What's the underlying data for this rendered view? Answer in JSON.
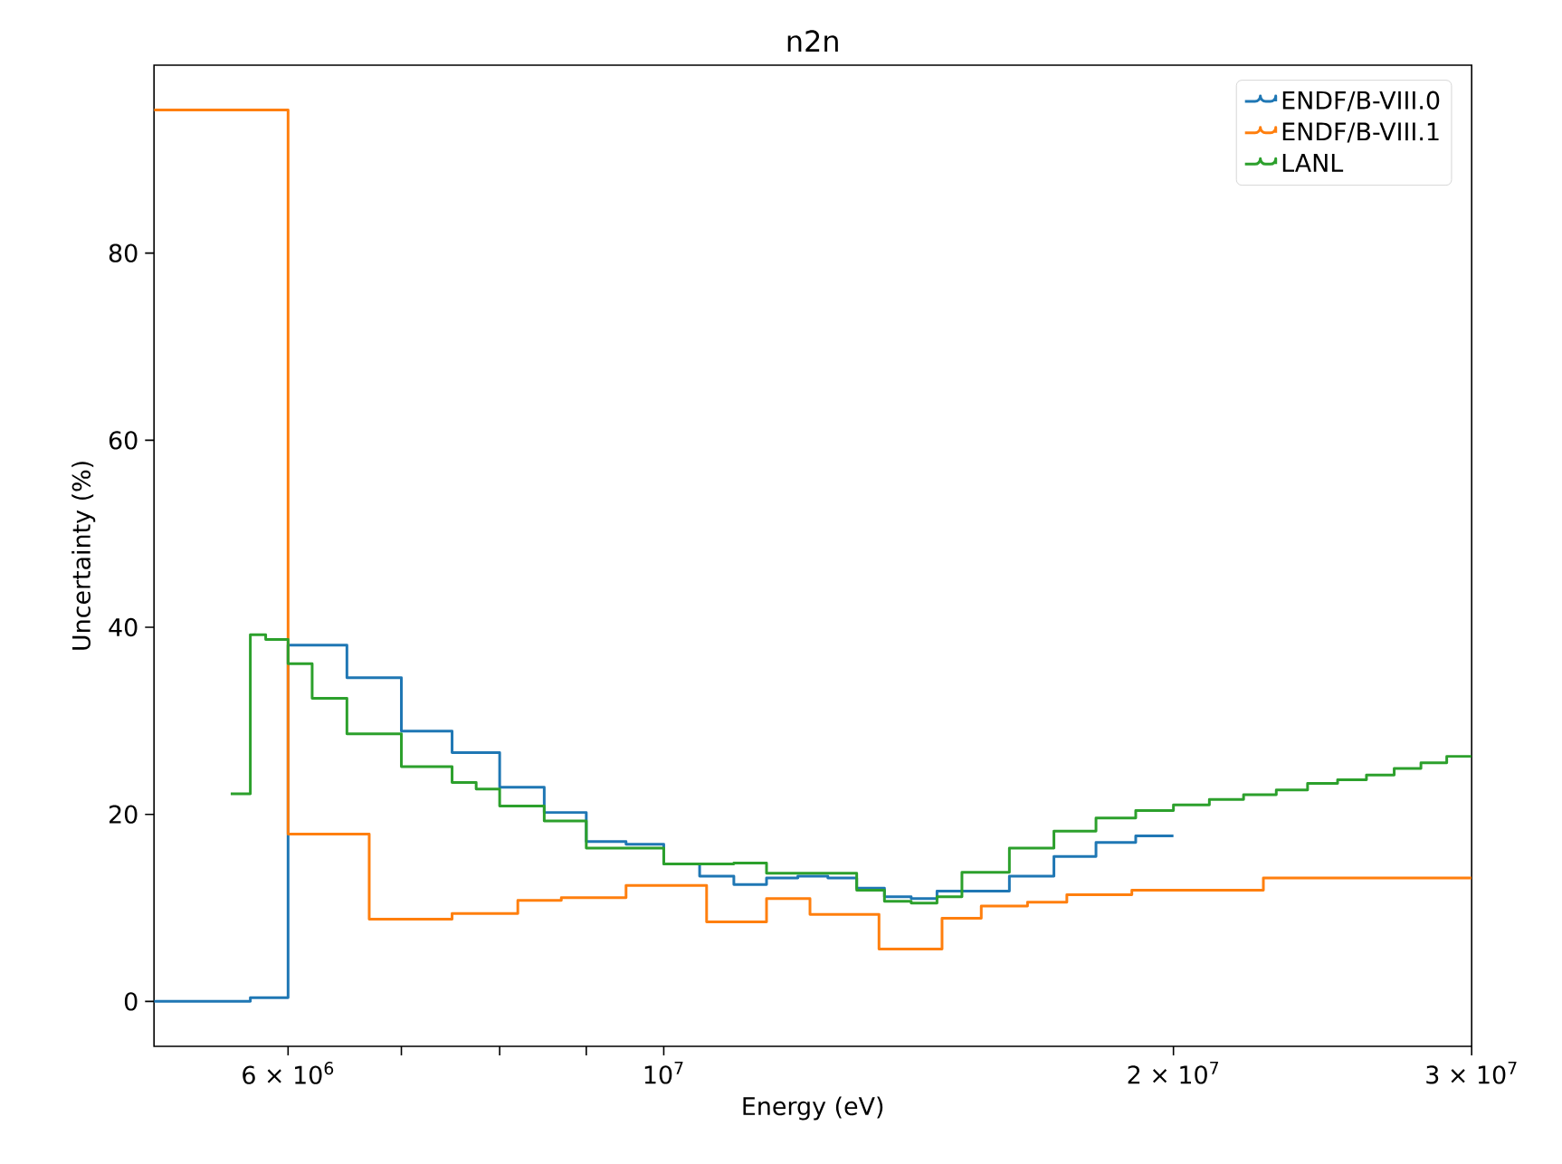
{
  "chart_data": {
    "type": "step",
    "title": "n2n",
    "xlabel": "Energy (eV)",
    "ylabel": "Uncertainty (%)",
    "log": "x",
    "legend": "top right",
    "xlim": [
      5000000,
      30000000
    ],
    "ylim": [
      -4.8,
      100.1
    ],
    "xticks": [
      {
        "value": 6000000,
        "label": "6 × 10$^{6}$"
      },
      {
        "value": 7000000,
        "label": null
      },
      {
        "value": 8000000,
        "label": null
      },
      {
        "value": 9000000,
        "label": null
      },
      {
        "value": 10000000,
        "label": "10$^{7}$"
      },
      {
        "value": 20000000,
        "label": "2 × 10$^{7}$"
      },
      {
        "value": 30000000,
        "label": "3 × 10$^{7}$"
      }
    ],
    "yticks": [
      0,
      20,
      40,
      60,
      80
    ],
    "series": [
      {
        "name": "ENDF/B-VIII.0",
        "color": "#1f77b4",
        "x": [
          5000000,
          5700000,
          6000000,
          6500000,
          7000000,
          7500000,
          8000000,
          8500000,
          9000000,
          9500000,
          10000000,
          10500000,
          11000000,
          11500000,
          12000000,
          12500000,
          13000000,
          13500000,
          14000000,
          14500000,
          16000000,
          17000000,
          18000000,
          19000000,
          20000000
        ],
        "values": [
          0,
          0.4,
          38.1,
          34.6,
          28.9,
          26.6,
          22.9,
          20.2,
          17.1,
          16.8,
          14.7,
          13.4,
          12.5,
          13.2,
          13.4,
          13.2,
          12.1,
          11.2,
          11.0,
          11.8,
          13.4,
          15.5,
          17.0,
          17.7,
          17.7
        ]
      },
      {
        "name": "ENDF/B-VIII.1",
        "color": "#ff7f0e",
        "x": [
          5000000,
          6000000,
          6700000,
          7500000,
          8200000,
          8700000,
          9500000,
          10600000,
          11500000,
          12200000,
          13400000,
          14600000,
          15400000,
          16400000,
          17300000,
          18900000,
          22600000,
          30000000
        ],
        "values": [
          95.3,
          17.9,
          8.8,
          9.4,
          10.8,
          11.1,
          12.4,
          8.5,
          11.0,
          9.3,
          5.6,
          8.9,
          10.2,
          10.6,
          11.4,
          11.9,
          13.2,
          13.2
        ]
      },
      {
        "name": "LANL",
        "color": "#2ca02c",
        "x": [
          5550000,
          5700000,
          5820000,
          6000000,
          6200000,
          6500000,
          7000000,
          7500000,
          7750000,
          8000000,
          8500000,
          9000000,
          10000000,
          11000000,
          11500000,
          13000000,
          13500000,
          14000000,
          14500000,
          15000000,
          16000000,
          17000000,
          18000000,
          19000000,
          20000000,
          21000000,
          22000000,
          23000000,
          24000000,
          25000000,
          26000000,
          27000000,
          28000000,
          29000000,
          30000000
        ],
        "values": [
          22.2,
          39.2,
          38.7,
          36.1,
          32.4,
          28.6,
          25.1,
          23.4,
          22.7,
          20.9,
          19.3,
          16.4,
          14.7,
          14.8,
          13.7,
          11.9,
          10.7,
          10.5,
          11.2,
          13.8,
          16.4,
          18.2,
          19.6,
          20.4,
          21.0,
          21.6,
          22.1,
          22.6,
          23.3,
          23.7,
          24.2,
          24.9,
          25.5,
          26.2,
          26.2
        ]
      }
    ]
  }
}
